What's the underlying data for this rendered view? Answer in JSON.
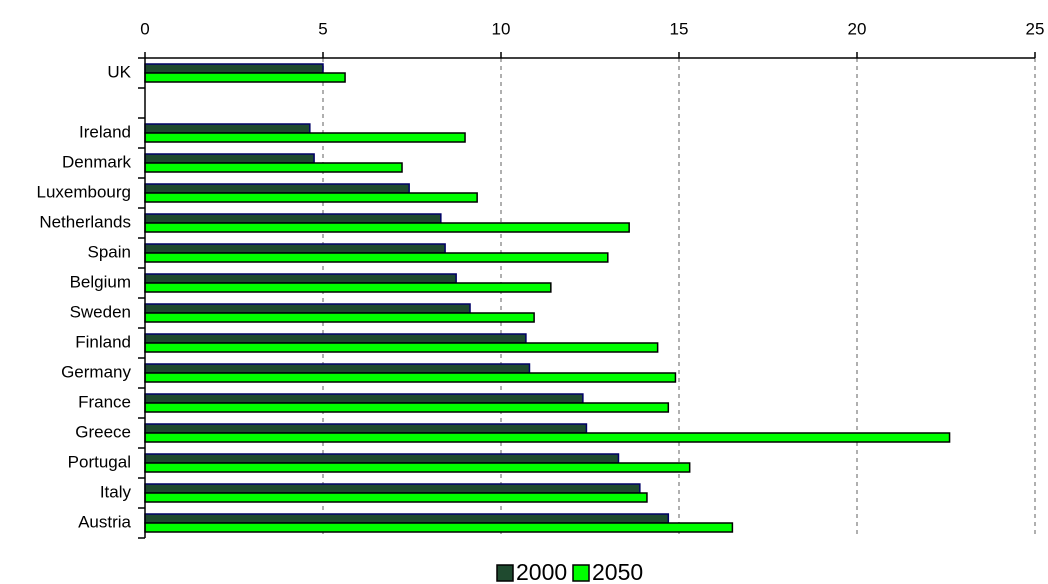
{
  "chart_data": {
    "type": "hbar",
    "categories": [
      "UK",
      null,
      "Ireland",
      "Denmark",
      "Luxembourg",
      "Netherlands",
      "Spain",
      "Belgium",
      "Sweden",
      "Finland",
      "Germany",
      "France",
      "Greece",
      "Portugal",
      "Italy",
      "Austria"
    ],
    "series": [
      {
        "name": "2000",
        "color": "#1f4a2f",
        "values": [
          5.0,
          null,
          4.63,
          4.75,
          7.42,
          8.31,
          8.43,
          8.74,
          9.13,
          10.7,
          10.8,
          12.3,
          12.4,
          13.3,
          13.9,
          14.7
        ]
      },
      {
        "name": "2050",
        "color": "#00ff00",
        "values": [
          5.62,
          null,
          8.99,
          7.22,
          9.33,
          13.6,
          13.0,
          11.4,
          10.93,
          14.4,
          14.9,
          14.7,
          22.6,
          15.3,
          14.1,
          16.5
        ]
      }
    ],
    "xlim": [
      0,
      25
    ],
    "xticks": [
      0,
      5,
      10,
      15,
      20,
      25
    ],
    "grid": true,
    "legend": "bottom"
  }
}
